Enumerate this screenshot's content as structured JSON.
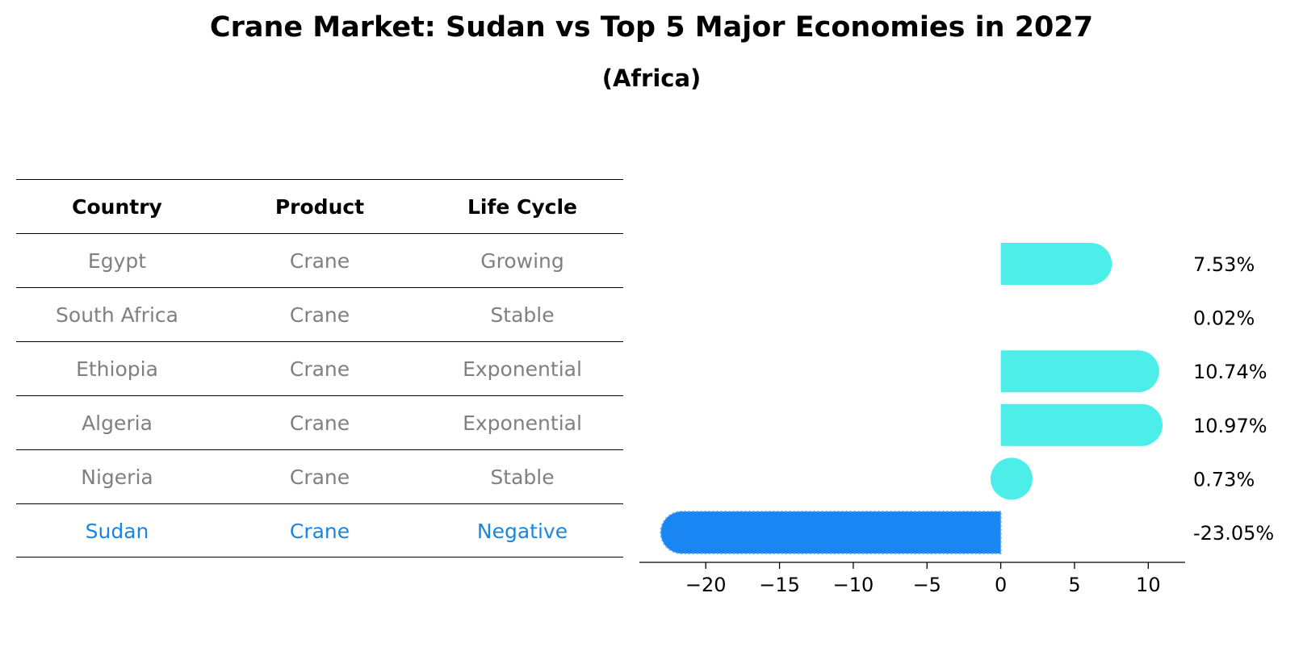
{
  "title": "Crane Market: Sudan vs Top 5 Major Economies in 2027",
  "subtitle": "(Africa)",
  "table": {
    "headers": [
      "Country",
      "Product",
      "Life Cycle"
    ],
    "rows": [
      {
        "country": "Egypt",
        "product": "Crane",
        "life_cycle": "Growing"
      },
      {
        "country": "South Africa",
        "product": "Crane",
        "life_cycle": "Stable"
      },
      {
        "country": "Ethiopia",
        "product": "Crane",
        "life_cycle": "Exponential"
      },
      {
        "country": "Algeria",
        "product": "Crane",
        "life_cycle": "Exponential"
      },
      {
        "country": "Nigeria",
        "product": "Crane",
        "life_cycle": "Stable"
      },
      {
        "country": "Sudan",
        "product": "Crane",
        "life_cycle": "Negative"
      }
    ],
    "highlight_row": 5
  },
  "colors": {
    "bar": "#4deee9",
    "highlight_bar": "#1a86f4",
    "row_text": "#808080",
    "highlight_text": "#1a86e0"
  },
  "chart_data": {
    "type": "bar",
    "orientation": "horizontal",
    "categories": [
      "Egypt",
      "South Africa",
      "Ethiopia",
      "Algeria",
      "Nigeria",
      "Sudan"
    ],
    "values": [
      7.53,
      0.02,
      10.74,
      10.97,
      0.73,
      -23.05
    ],
    "value_labels": [
      "7.53%",
      "0.02%",
      "10.74%",
      "10.97%",
      "0.73%",
      "-23.05%"
    ],
    "xlim": [
      -24.5,
      12.5
    ],
    "xticks": [
      -20,
      -15,
      -10,
      -5,
      0,
      5,
      10
    ],
    "xtick_labels": [
      "−20",
      "−15",
      "−10",
      "−5",
      "0",
      "5",
      "10"
    ],
    "highlight_index": 5,
    "grid": false
  }
}
